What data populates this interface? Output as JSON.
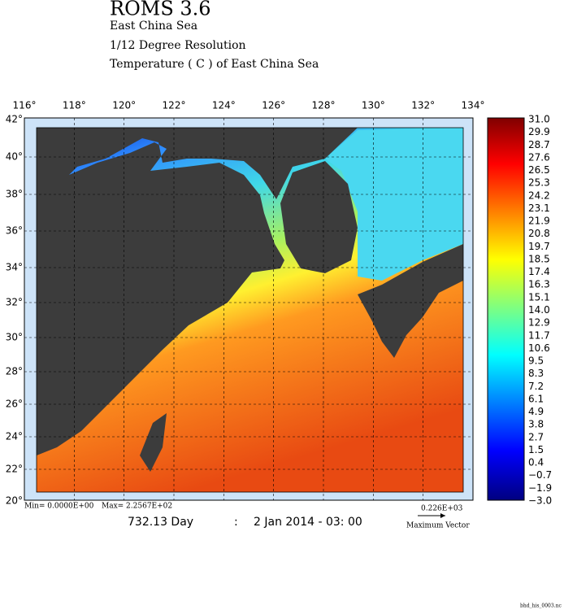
{
  "header": {
    "title": "ROMS 3.6",
    "lines": [
      "East China Sea",
      "1/12 Degree Resolution",
      "Temperature ( C ) of East China Sea"
    ]
  },
  "map": {
    "lon_labels": [
      "116°",
      "118°",
      "120°",
      "122°",
      "124°",
      "126°",
      "128°",
      "130°",
      "132°",
      "134°"
    ],
    "lat_labels": [
      "42°",
      "40°",
      "38°",
      "36°",
      "34°",
      "32°",
      "30°",
      "28°",
      "26°",
      "24°",
      "22°",
      "20°"
    ]
  },
  "colorbar": {
    "labels": [
      "31.0",
      "29.9",
      "28.7",
      "27.6",
      "26.5",
      "25.3",
      "24.2",
      "23.1",
      "21.9",
      "20.8",
      "19.7",
      "18.5",
      "17.4",
      "16.3",
      "15.1",
      "14.0",
      "12.9",
      "11.7",
      "10.6",
      "9.5",
      "8.3",
      "7.2",
      "6.1",
      "4.9",
      "3.8",
      "2.7",
      "1.5",
      "0.4",
      "−0.7",
      "−1.9",
      "−3.0"
    ]
  },
  "footer": {
    "min": "Min= 0.0000E+00",
    "max": "Max= 2.2567E+02",
    "day": "732.13 Day",
    "colon": ":",
    "date": "2 Jan 2014 - 03: 00",
    "vector_scale": "0.226E+03",
    "vector_label": "Maximum Vector",
    "file": "bhd_his_0003.nc"
  }
}
